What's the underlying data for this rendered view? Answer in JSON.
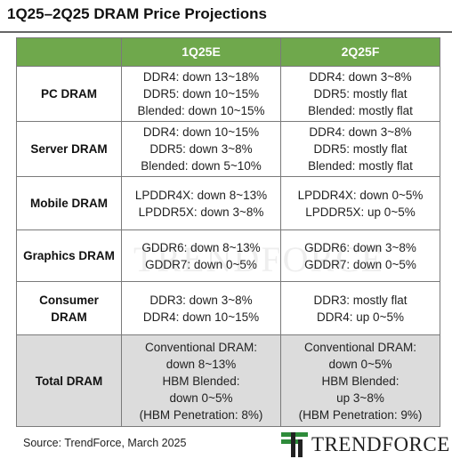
{
  "title": "1Q25–2Q25 DRAM Price Projections",
  "columns": [
    "1Q25E",
    "2Q25F"
  ],
  "rows": [
    {
      "label": "PC DRAM",
      "q1": [
        "DDR4: down 13~18%",
        "DDR5: down 10~15%",
        "Blended: down 10~15%"
      ],
      "q2": [
        "DDR4: down 3~8%",
        "DDR5: mostly flat",
        "Blended: mostly flat"
      ]
    },
    {
      "label": "Server DRAM",
      "q1": [
        "DDR4: down 10~15%",
        "DDR5: down 3~8%",
        "Blended: down 5~10%"
      ],
      "q2": [
        "DDR4: down 3~8%",
        "DDR5: mostly flat",
        "Blended: mostly flat"
      ]
    },
    {
      "label": "Mobile DRAM",
      "q1": [
        "LPDDR4X: down 8~13%",
        "LPDDR5X: down 3~8%"
      ],
      "q2": [
        "LPDDR4X: down 0~5%",
        "LPDDR5X: up 0~5%"
      ]
    },
    {
      "label": "Graphics DRAM",
      "q1": [
        "GDDR6: down 8~13%",
        "GDDR7: down 0~5%"
      ],
      "q2": [
        "GDDR6: down 3~8%",
        "GDDR7: down 0~5%"
      ]
    },
    {
      "label_lines": [
        "Consumer",
        "DRAM"
      ],
      "q1": [
        "DDR3: down 3~8%",
        "DDR4: down 10~15%"
      ],
      "q2": [
        "DDR3: mostly flat",
        "DDR4: up 0~5%"
      ]
    },
    {
      "label": "Total DRAM",
      "q1": [
        "Conventional DRAM:",
        "down 8~13%",
        "HBM Blended:",
        "down 0~5%",
        "(HBM Penetration: 8%)"
      ],
      "q2": [
        "Conventional DRAM:",
        "down 0~5%",
        "HBM Blended:",
        "up 3~8%",
        "(HBM Penetration: 9%)"
      ]
    }
  ],
  "source": "Source: TrendForce, March 2025",
  "logo": {
    "text": "TRENDFORCE",
    "brand_color": "#2e8b3a"
  },
  "watermark": "TRENDFORCE",
  "colors": {
    "header_green": "#6fa84c",
    "total_row_gray": "#dcdcdc"
  }
}
